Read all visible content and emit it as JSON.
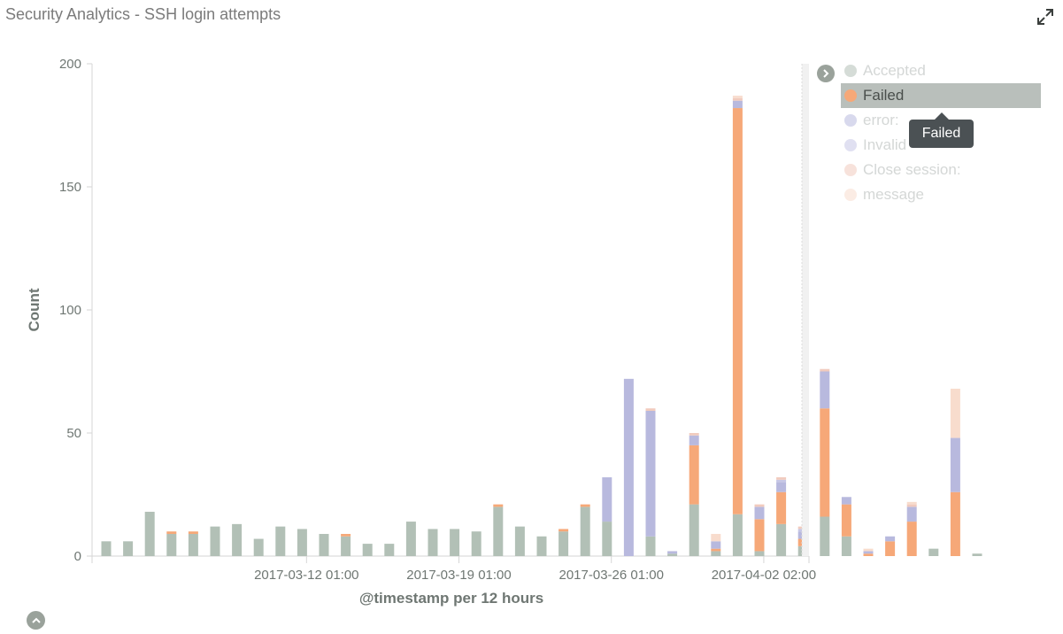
{
  "panel": {
    "title": "Security Analytics - SSH login attempts"
  },
  "legend": {
    "items": [
      {
        "label": "Accepted",
        "color": "#b2c0b6",
        "highlighted": false
      },
      {
        "label": "Failed",
        "color": "#f6a878",
        "highlighted": true
      },
      {
        "label": "error:",
        "color": "#b8b9de",
        "highlighted": false
      },
      {
        "label": "Invalid",
        "color": "#c6c7e6",
        "highlighted": false
      },
      {
        "label": "Close session:",
        "color": "#f1cbbe",
        "highlighted": false
      },
      {
        "label": "message",
        "color": "#f8dccd",
        "highlighted": false
      }
    ]
  },
  "tooltip": {
    "text": "Failed"
  },
  "chart_data": {
    "type": "bar",
    "stacked": true,
    "xlabel": "@timestamp per 12 hours",
    "ylabel": "Count",
    "ylim": [
      0,
      200
    ],
    "yticks": [
      0,
      50,
      100,
      150,
      200
    ],
    "xticks": [
      {
        "label": "2017-03-12 01:00",
        "index": 9.2
      },
      {
        "label": "2017-03-19 01:00",
        "index": 16.2
      },
      {
        "label": "2017-03-26 01:00",
        "index": 23.2
      },
      {
        "label": "2017-04-02 02:00",
        "index": 30.2
      }
    ],
    "grid": false,
    "legend_position": "right",
    "series": [
      {
        "name": "Accepted",
        "color": "#b2c0b6",
        "values": [
          6,
          6,
          18,
          9,
          9,
          12,
          13,
          7,
          12,
          11,
          9,
          8,
          5,
          5,
          14,
          11,
          11,
          10,
          20,
          12,
          8,
          10,
          20,
          14,
          0,
          8,
          1,
          21,
          2,
          17,
          2,
          13,
          4,
          16,
          8,
          0,
          0,
          0,
          3,
          0,
          1
        ]
      },
      {
        "name": "Failed",
        "color": "#f6a878",
        "values": [
          0,
          0,
          0,
          1,
          1,
          0,
          0,
          0,
          0,
          0,
          0,
          1,
          0,
          0,
          0,
          0,
          0,
          0,
          1,
          0,
          0,
          1,
          1,
          0,
          0,
          0,
          0,
          24,
          1,
          165,
          13,
          13,
          3,
          44,
          13,
          1,
          6,
          14,
          0,
          26,
          0
        ]
      },
      {
        "name": "error:",
        "color": "#b8b9de",
        "values": [
          0,
          0,
          0,
          0,
          0,
          0,
          0,
          0,
          0,
          0,
          0,
          0,
          0,
          0,
          0,
          0,
          0,
          0,
          0,
          0,
          0,
          0,
          0,
          18,
          72,
          51,
          1,
          4,
          3,
          3,
          5,
          4,
          3,
          15,
          3,
          1,
          2,
          6,
          0,
          22,
          0
        ]
      },
      {
        "name": "Invalid",
        "color": "#c6c7e6",
        "values": [
          0,
          0,
          0,
          0,
          0,
          0,
          0,
          0,
          0,
          0,
          0,
          0,
          0,
          0,
          0,
          0,
          0,
          0,
          0,
          0,
          0,
          0,
          0,
          0,
          0,
          0,
          0,
          0,
          0,
          0,
          0,
          1,
          1,
          0,
          0,
          0,
          0,
          0,
          0,
          0,
          0
        ]
      },
      {
        "name": "Close session:",
        "color": "#f1cbbe",
        "values": [
          0,
          0,
          0,
          0,
          0,
          0,
          0,
          0,
          0,
          0,
          0,
          0,
          0,
          0,
          0,
          0,
          0,
          0,
          0,
          0,
          0,
          0,
          0,
          0,
          0,
          1,
          0,
          1,
          0,
          1,
          1,
          1,
          1,
          1,
          0,
          0,
          0,
          1,
          0,
          0,
          0
        ]
      },
      {
        "name": "message",
        "color": "#f8dccd",
        "values": [
          0,
          0,
          0,
          0,
          0,
          0,
          0,
          0,
          0,
          0,
          0,
          0,
          0,
          0,
          0,
          0,
          0,
          0,
          0,
          0,
          0,
          0,
          0,
          0,
          0,
          0,
          0,
          0,
          3,
          1,
          0,
          0,
          0,
          0,
          0,
          1,
          0,
          1,
          0,
          20,
          0
        ]
      }
    ]
  }
}
